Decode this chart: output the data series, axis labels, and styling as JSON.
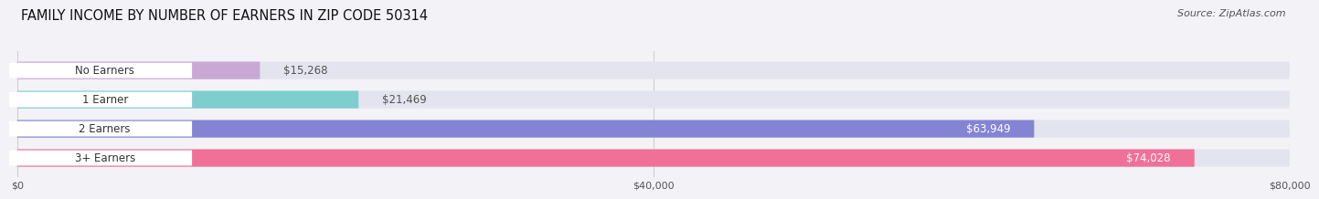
{
  "title": "FAMILY INCOME BY NUMBER OF EARNERS IN ZIP CODE 50314",
  "source": "Source: ZipAtlas.com",
  "categories": [
    "No Earners",
    "1 Earner",
    "2 Earners",
    "3+ Earners"
  ],
  "values": [
    15268,
    21469,
    63949,
    74028
  ],
  "bar_colors": [
    "#c9a8d4",
    "#7ecece",
    "#8484d4",
    "#f07098"
  ],
  "bar_labels": [
    "$15,268",
    "$21,469",
    "$63,949",
    "$74,028"
  ],
  "label_dark": [
    "#555555",
    "#555555",
    "#ffffff",
    "#ffffff"
  ],
  "xlim": [
    0,
    80000
  ],
  "xticks": [
    0,
    40000,
    80000
  ],
  "xtick_labels": [
    "$0",
    "$40,000",
    "$80,000"
  ],
  "bg_color": "#f2f2f7",
  "bar_bg_color": "#e4e4ee",
  "title_fontsize": 10.5,
  "source_fontsize": 8,
  "label_fontsize": 8.5,
  "cat_fontsize": 8.5
}
